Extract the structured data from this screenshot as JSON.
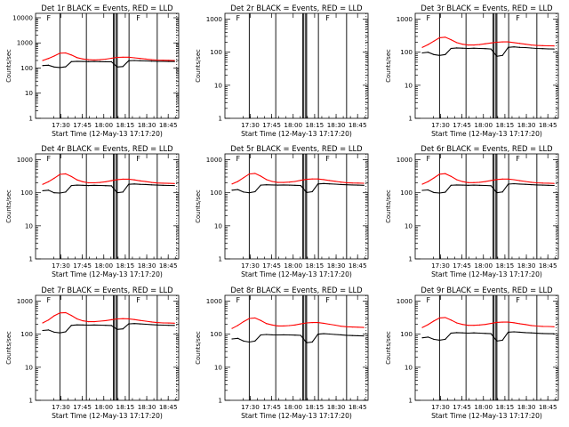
{
  "figure": {
    "xlabel": "Start Time (12-May-13 17:17:20)",
    "ylabel": "Counts/sec",
    "xticks": [
      "17:30",
      "17:45",
      "18:00",
      "18:15",
      "18:30",
      "18:45"
    ],
    "flag_label": "F",
    "colors": {
      "events": "#000000",
      "lld": "#ff0000"
    }
  },
  "chart_data": [
    {
      "type": "line",
      "title": "Det 1r BLACK = Events, RED = LLD",
      "xlabel": "Start Time (12-May-13 17:17:20)",
      "ylabel": "Counts/sec",
      "yscale": "log",
      "ylim": [
        1,
        15000
      ],
      "yticks": [
        "1",
        "10",
        "100",
        "1000",
        "10000"
      ],
      "x_minutes": [
        0,
        4,
        8,
        12,
        16,
        20,
        24,
        28,
        32,
        36,
        40,
        44,
        48,
        52,
        56,
        60,
        64,
        68,
        72,
        76,
        80,
        84,
        88,
        92
      ],
      "series": [
        {
          "name": "Events",
          "color": "#000000",
          "values": [
            125,
            130,
            110,
            105,
            112,
            180,
            185,
            182,
            180,
            182,
            180,
            178,
            178,
            110,
            115,
            195,
            200,
            195,
            192,
            188,
            185,
            185,
            183,
            182
          ]
        },
        {
          "name": "LLD",
          "color": "#ff0000",
          "values": [
            200,
            240,
            300,
            390,
            400,
            330,
            260,
            230,
            215,
            210,
            215,
            225,
            245,
            265,
            270,
            270,
            255,
            240,
            228,
            215,
            208,
            205,
            203,
            200
          ]
        }
      ]
    },
    {
      "type": "line",
      "title": "Det 2r BLACK = Events, RED = LLD",
      "xlabel": "Start Time (12-May-13 17:17:20)",
      "ylabel": "Counts/sec",
      "yscale": "log",
      "ylim": [
        1,
        1500
      ],
      "yticks": [
        "1",
        "10",
        "100",
        "1000"
      ],
      "x_minutes": [],
      "series": []
    },
    {
      "type": "line",
      "title": "Det 3r BLACK = Events, RED = LLD",
      "xlabel": "Start Time (12-May-13 17:17:20)",
      "ylabel": "Counts/sec",
      "yscale": "log",
      "ylim": [
        1,
        1500
      ],
      "yticks": [
        "1",
        "10",
        "100",
        "1000"
      ],
      "x_minutes": [
        0,
        4,
        8,
        12,
        16,
        20,
        24,
        28,
        32,
        36,
        40,
        44,
        48,
        52,
        56,
        60,
        64,
        68,
        72,
        76,
        80,
        84,
        88,
        92
      ],
      "series": [
        {
          "name": "Events",
          "color": "#000000",
          "values": [
            95,
            100,
            85,
            80,
            85,
            130,
            135,
            132,
            130,
            132,
            130,
            128,
            125,
            75,
            80,
            140,
            145,
            140,
            138,
            134,
            130,
            128,
            126,
            125
          ]
        },
        {
          "name": "LLD",
          "color": "#ff0000",
          "values": [
            140,
            170,
            215,
            275,
            285,
            240,
            195,
            175,
            165,
            165,
            170,
            180,
            190,
            200,
            205,
            205,
            195,
            185,
            175,
            165,
            160,
            158,
            156,
            155
          ]
        }
      ]
    },
    {
      "type": "line",
      "title": "Det 4r BLACK = Events, RED = LLD",
      "xlabel": "Start Time (12-May-13 17:17:20)",
      "ylabel": "Counts/sec",
      "yscale": "log",
      "ylim": [
        1,
        1500
      ],
      "yticks": [
        "1",
        "10",
        "100",
        "1000"
      ],
      "x_minutes": [
        0,
        4,
        8,
        12,
        16,
        20,
        24,
        28,
        32,
        36,
        40,
        44,
        48,
        52,
        56,
        60,
        64,
        68,
        72,
        76,
        80,
        84,
        88,
        92
      ],
      "series": [
        {
          "name": "Events",
          "color": "#000000",
          "values": [
            115,
            120,
            100,
            98,
            105,
            165,
            170,
            168,
            165,
            168,
            166,
            164,
            162,
            100,
            105,
            180,
            185,
            180,
            178,
            174,
            170,
            168,
            166,
            165
          ]
        },
        {
          "name": "LLD",
          "color": "#ff0000",
          "values": [
            180,
            215,
            275,
            360,
            375,
            310,
            245,
            215,
            200,
            200,
            205,
            215,
            232,
            250,
            258,
            258,
            245,
            230,
            218,
            205,
            198,
            195,
            193,
            190
          ]
        }
      ]
    },
    {
      "type": "line",
      "title": "Det 5r BLACK = Events, RED = LLD",
      "xlabel": "Start Time (12-May-13 17:17:20)",
      "ylabel": "Counts/sec",
      "yscale": "log",
      "ylim": [
        1,
        1500
      ],
      "yticks": [
        "1",
        "10",
        "100",
        "1000"
      ],
      "x_minutes": [
        0,
        4,
        8,
        12,
        16,
        20,
        24,
        28,
        32,
        36,
        40,
        44,
        48,
        52,
        56,
        60,
        64,
        68,
        72,
        76,
        80,
        84,
        88,
        92
      ],
      "series": [
        {
          "name": "Events",
          "color": "#000000",
          "values": [
            120,
            125,
            105,
            100,
            108,
            170,
            175,
            172,
            170,
            172,
            170,
            168,
            165,
            102,
            108,
            185,
            190,
            186,
            182,
            178,
            175,
            172,
            170,
            168
          ]
        },
        {
          "name": "LLD",
          "color": "#ff0000",
          "values": [
            185,
            220,
            285,
            370,
            385,
            318,
            250,
            220,
            205,
            205,
            210,
            220,
            238,
            255,
            262,
            262,
            250,
            235,
            222,
            210,
            202,
            198,
            196,
            194
          ]
        }
      ]
    },
    {
      "type": "line",
      "title": "Det 6r BLACK = Events, RED = LLD",
      "xlabel": "Start Time (12-May-13 17:17:20)",
      "ylabel": "Counts/sec",
      "yscale": "log",
      "ylim": [
        1,
        1500
      ],
      "yticks": [
        "1",
        "10",
        "100",
        "1000"
      ],
      "x_minutes": [
        0,
        4,
        8,
        12,
        16,
        20,
        24,
        28,
        32,
        36,
        40,
        44,
        48,
        52,
        56,
        60,
        64,
        68,
        72,
        76,
        80,
        84,
        88,
        92
      ],
      "series": [
        {
          "name": "Events",
          "color": "#000000",
          "values": [
            118,
            122,
            102,
            98,
            104,
            168,
            172,
            170,
            168,
            170,
            168,
            166,
            163,
            100,
            106,
            182,
            188,
            183,
            180,
            176,
            172,
            170,
            168,
            166
          ]
        },
        {
          "name": "LLD",
          "color": "#ff0000",
          "values": [
            182,
            218,
            280,
            365,
            380,
            314,
            248,
            218,
            203,
            203,
            208,
            218,
            235,
            252,
            260,
            260,
            248,
            232,
            220,
            208,
            200,
            197,
            195,
            192
          ]
        }
      ]
    },
    {
      "type": "line",
      "title": "Det 7r BLACK = Events, RED = LLD",
      "xlabel": "Start Time (12-May-13 17:17:20)",
      "ylabel": "Counts/sec",
      "yscale": "log",
      "ylim": [
        1,
        1500
      ],
      "yticks": [
        "1",
        "10",
        "100",
        "1000"
      ],
      "x_minutes": [
        0,
        4,
        8,
        12,
        16,
        20,
        24,
        28,
        32,
        36,
        40,
        44,
        48,
        52,
        56,
        60,
        64,
        68,
        72,
        76,
        80,
        84,
        88,
        92
      ],
      "series": [
        {
          "name": "Events",
          "color": "#000000",
          "values": [
            130,
            135,
            115,
            110,
            118,
            185,
            192,
            190,
            188,
            190,
            188,
            186,
            184,
            140,
            145,
            205,
            210,
            205,
            200,
            195,
            190,
            188,
            186,
            185
          ]
        },
        {
          "name": "LLD",
          "color": "#ff0000",
          "values": [
            220,
            270,
            360,
            440,
            450,
            370,
            290,
            255,
            240,
            240,
            248,
            258,
            275,
            290,
            295,
            292,
            278,
            262,
            248,
            235,
            225,
            220,
            218,
            215
          ]
        }
      ]
    },
    {
      "type": "line",
      "title": "Det 8r BLACK = Events, RED = LLD",
      "xlabel": "Start Time (12-May-13 17:17:20)",
      "ylabel": "Counts/sec",
      "yscale": "log",
      "ylim": [
        1,
        1500
      ],
      "yticks": [
        "1",
        "10",
        "100",
        "1000"
      ],
      "x_minutes": [
        0,
        4,
        8,
        12,
        16,
        20,
        24,
        28,
        32,
        36,
        40,
        44,
        48,
        52,
        56,
        60,
        64,
        68,
        72,
        76,
        80,
        84,
        88,
        92
      ],
      "series": [
        {
          "name": "Events",
          "color": "#000000",
          "values": [
            72,
            75,
            62,
            58,
            62,
            95,
            98,
            96,
            95,
            96,
            95,
            94,
            92,
            55,
            58,
            100,
            104,
            101,
            98,
            96,
            93,
            91,
            90,
            89
          ]
        },
        {
          "name": "LLD",
          "color": "#ff0000",
          "values": [
            150,
            185,
            240,
            300,
            310,
            260,
            210,
            190,
            178,
            178,
            182,
            190,
            205,
            220,
            225,
            225,
            214,
            200,
            188,
            175,
            168,
            165,
            163,
            160
          ]
        }
      ]
    },
    {
      "type": "line",
      "title": "Det 9r BLACK = Events, RED = LLD",
      "xlabel": "Start Time (12-May-13 17:17:20)",
      "ylabel": "Counts/sec",
      "yscale": "log",
      "ylim": [
        1,
        1500
      ],
      "yticks": [
        "1",
        "10",
        "100",
        "1000"
      ],
      "x_minutes": [
        0,
        4,
        8,
        12,
        16,
        20,
        24,
        28,
        32,
        36,
        40,
        44,
        48,
        52,
        56,
        60,
        64,
        68,
        72,
        76,
        80,
        84,
        88,
        92
      ],
      "series": [
        {
          "name": "Events",
          "color": "#000000",
          "values": [
            78,
            82,
            70,
            66,
            70,
            108,
            112,
            110,
            108,
            110,
            108,
            106,
            104,
            62,
            66,
            115,
            118,
            115,
            112,
            110,
            107,
            105,
            104,
            103
          ]
        },
        {
          "name": "LLD",
          "color": "#ff0000",
          "values": [
            160,
            195,
            250,
            310,
            320,
            270,
            220,
            198,
            186,
            186,
            190,
            198,
            212,
            228,
            232,
            232,
            222,
            208,
            196,
            184,
            177,
            173,
            171,
            168
          ]
        }
      ]
    }
  ]
}
